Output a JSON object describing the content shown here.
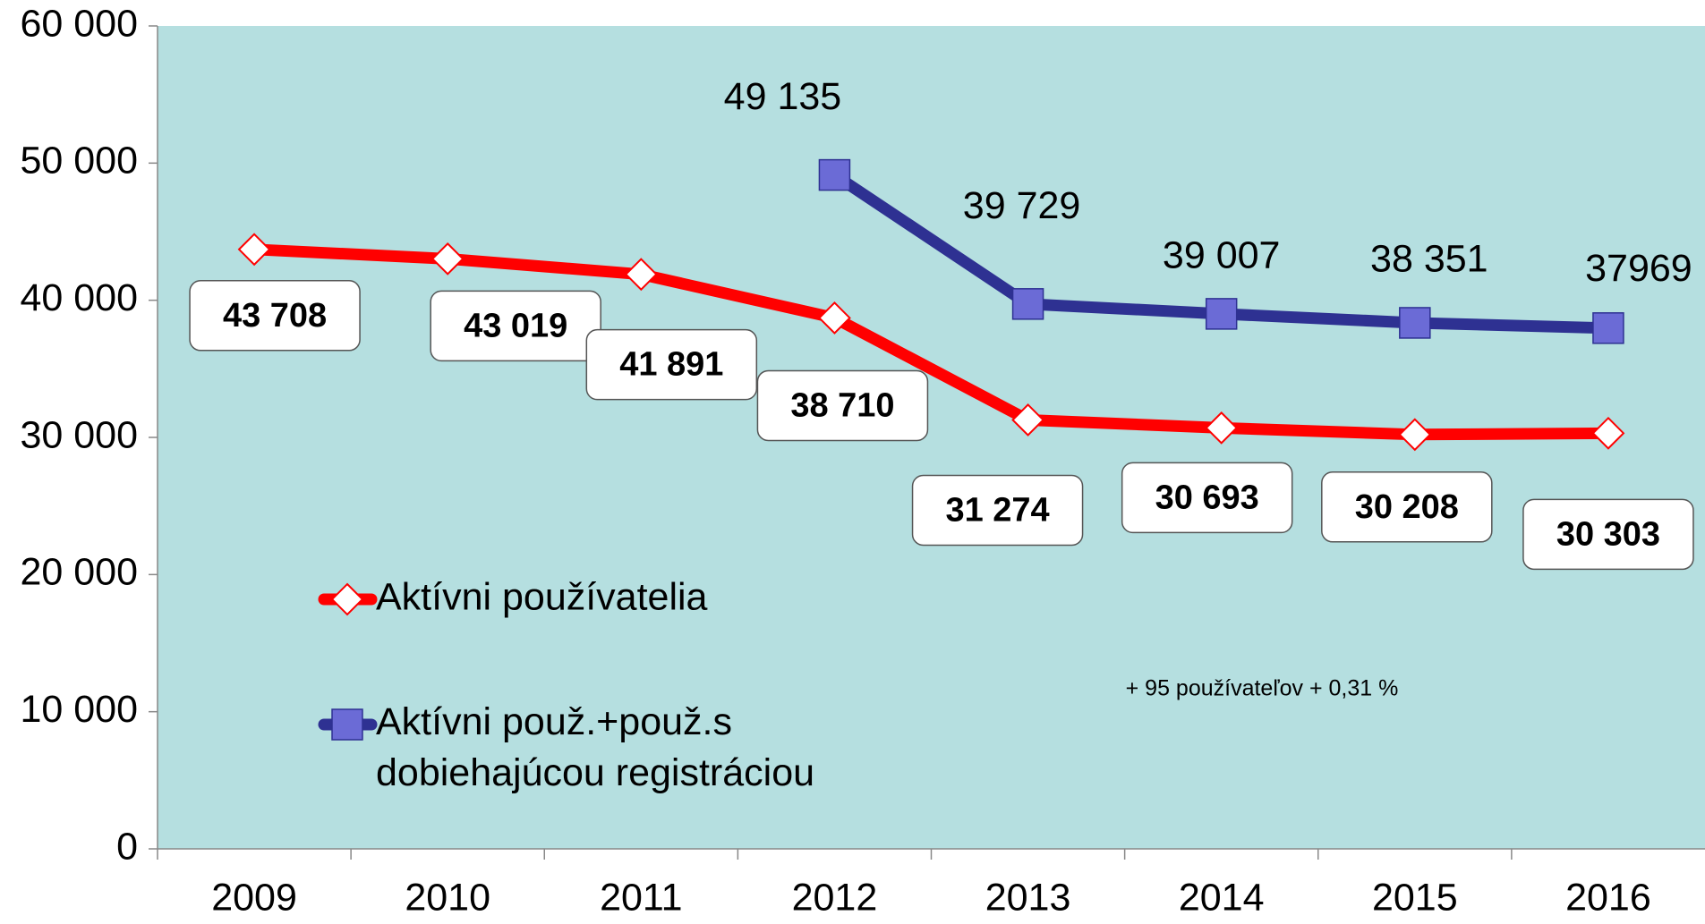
{
  "chart_data": {
    "type": "line",
    "categories": [
      "2009",
      "2010",
      "2011",
      "2012",
      "2013",
      "2014",
      "2015",
      "2016"
    ],
    "series": [
      {
        "name": "Aktívni používatelia",
        "color": "#ff0000",
        "values": [
          43708,
          43019,
          41891,
          38710,
          31274,
          30693,
          30208,
          30303
        ],
        "value_labels": [
          "43 708",
          "43 019",
          "41 891",
          "38 710",
          "31 274",
          "30 693",
          "30 208",
          "30 303"
        ]
      },
      {
        "name": "Aktívni použ.+použ.s dobiehajúcou registráciou",
        "color": "#2e3192",
        "values": [
          null,
          null,
          null,
          49135,
          39729,
          39007,
          38351,
          37969
        ],
        "value_labels": [
          null,
          null,
          null,
          "49 135",
          "39 729",
          "39 007",
          "38 351",
          "37969"
        ]
      }
    ],
    "ylim": [
      0,
      60000
    ],
    "yticks": [
      0,
      {
        "value": 10000,
        "label": "10 000"
      },
      {
        "value": 20000,
        "label": "20 000"
      },
      {
        "value": 30000,
        "label": "30 000"
      },
      {
        "value": 40000,
        "label": "40 000"
      },
      {
        "value": 50000,
        "label": "50 000"
      },
      {
        "value": 60000,
        "label": "60 000"
      }
    ],
    "annotations": [
      "+ 95 používateľov + 0,31 %"
    ],
    "background": "#b5dfe0"
  }
}
